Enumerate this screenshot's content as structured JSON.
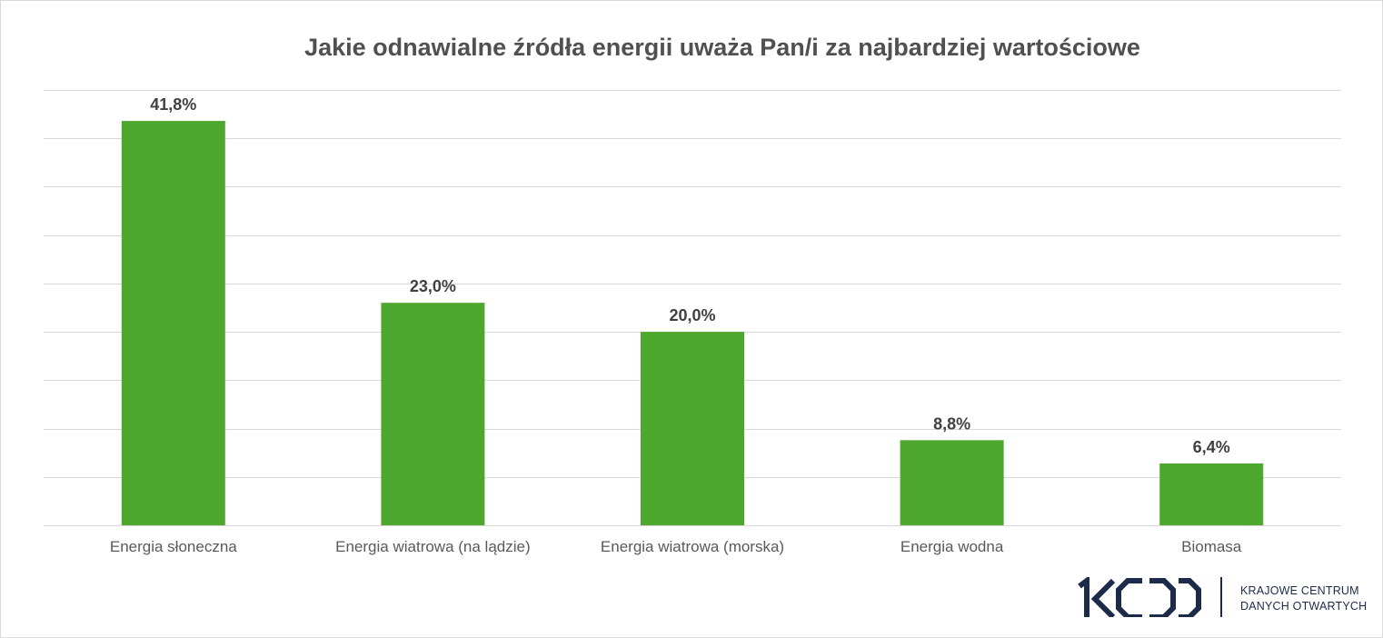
{
  "chart_data": {
    "type": "bar",
    "title": "Jakie odnawialne źródła energii uważa Pan/i za najbardziej wartościowe",
    "categories": [
      "Energia słoneczna",
      "Energia wiatrowa (na lądzie)",
      "Energia wiatrowa (morska)",
      "Energia wodna",
      "Biomasa"
    ],
    "values": [
      41.8,
      23.0,
      20.0,
      8.8,
      6.4
    ],
    "data_labels": [
      "41,8%",
      "23,0%",
      "20,0%",
      "8,8%",
      "6,4%"
    ],
    "xlabel": "",
    "ylabel": "",
    "ylim": [
      0,
      45
    ],
    "grid": true,
    "gridline_step": 5,
    "legend": "none",
    "bar_color": "#4ea72e"
  },
  "logo": {
    "mark": "KCDO",
    "line1": "KRAJOWE CENTRUM",
    "line2": "DANYCH OTWARTYCH",
    "color": "#1c2b4a"
  }
}
